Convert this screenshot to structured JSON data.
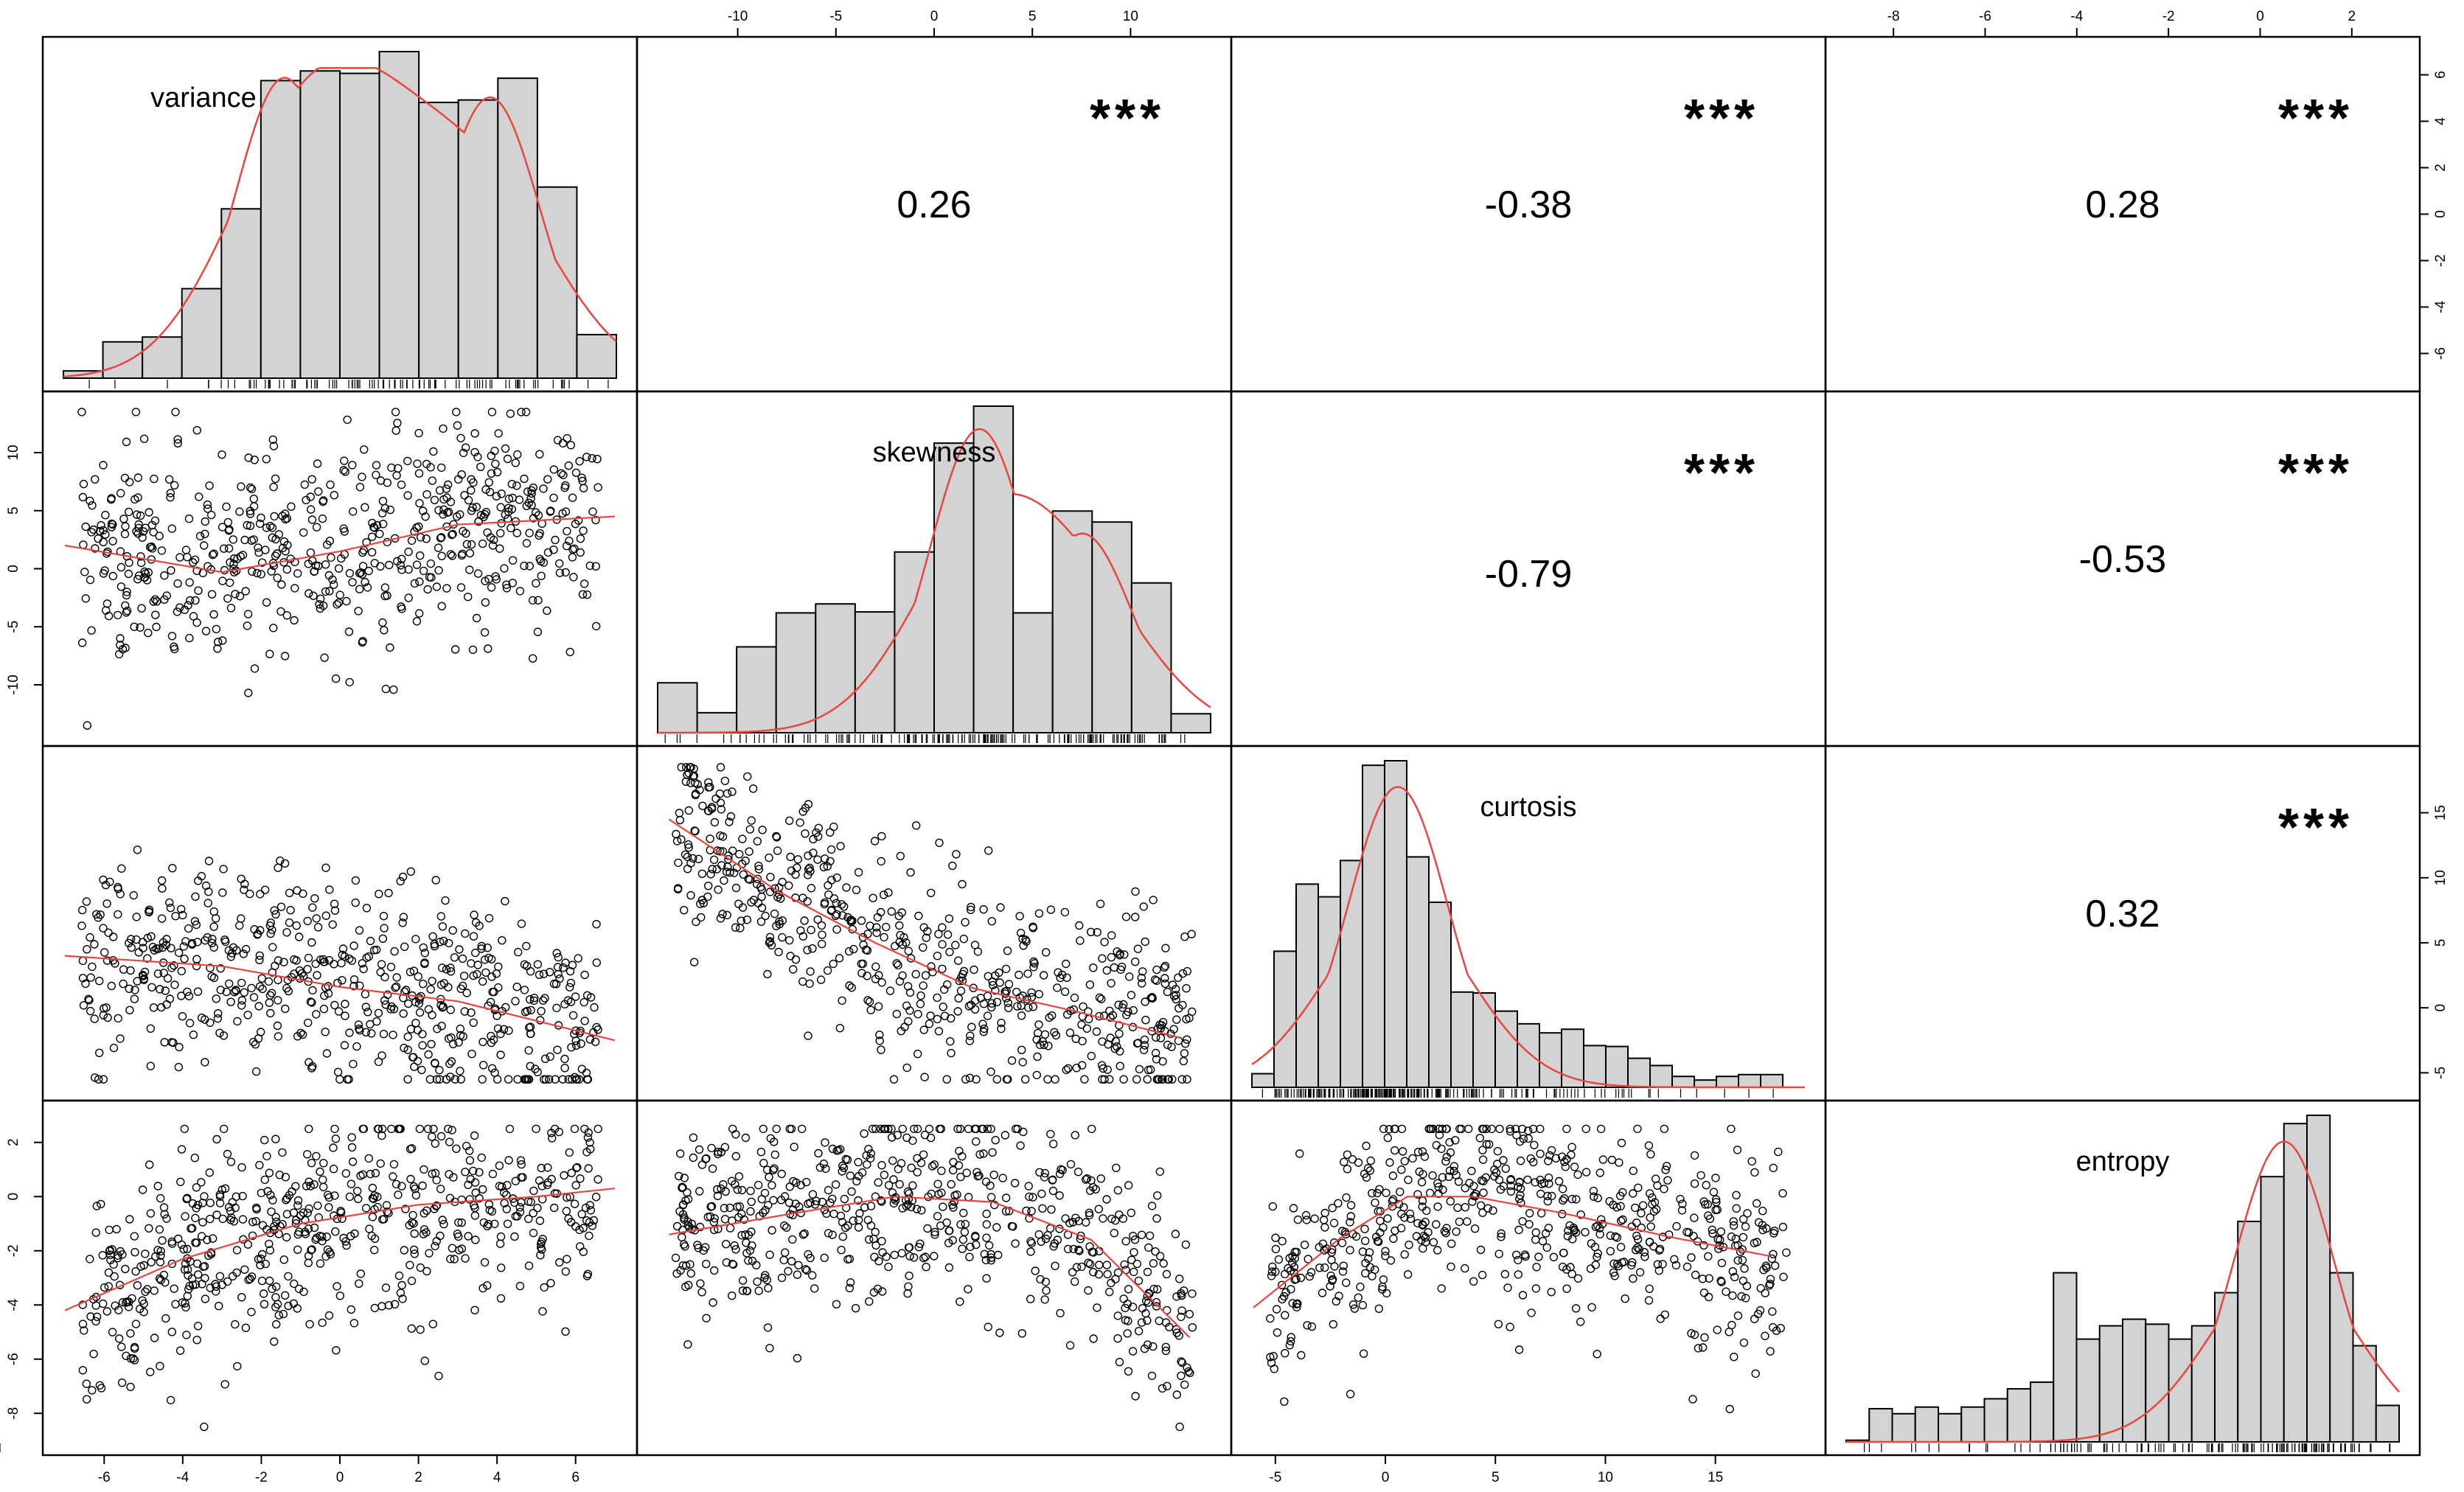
{
  "colors": {
    "background": "#ffffff",
    "bar": "#d3d3d3",
    "density": "#e8463f",
    "smooth": "#e8463f",
    "stars": "#d6496b",
    "ink": "#000000"
  },
  "chart_data": {
    "type": "scatter",
    "kind": "correlation-matrix",
    "title": "",
    "variables": [
      "variance",
      "skewness",
      "curtosis",
      "entropy"
    ],
    "ranges": {
      "variance": [
        -7.0,
        7.0
      ],
      "skewness": [
        -14.0,
        14.0
      ],
      "curtosis": [
        -6.0,
        19.0
      ],
      "entropy": [
        -9.0,
        3.0
      ]
    },
    "ticks": {
      "variance": [
        "-6",
        "-4",
        "-2",
        "0",
        "2",
        "4",
        "6"
      ],
      "skewness": [
        "-10",
        "-5",
        "0",
        "5",
        "10"
      ],
      "curtosis": [
        "-5",
        "0",
        "5",
        "10",
        "15"
      ],
      "entropy": [
        "-8",
        "-6",
        "-4",
        "-2",
        "0",
        "2"
      ]
    },
    "correlations": [
      {
        "row": "variance",
        "col": "skewness",
        "value": "0.26",
        "stars": "***"
      },
      {
        "row": "variance",
        "col": "curtosis",
        "value": "-0.38",
        "stars": "***"
      },
      {
        "row": "variance",
        "col": "entropy",
        "value": "0.28",
        "stars": "***"
      },
      {
        "row": "skewness",
        "col": "curtosis",
        "value": "-0.79",
        "stars": "***"
      },
      {
        "row": "skewness",
        "col": "entropy",
        "value": "-0.53",
        "stars": "***"
      },
      {
        "row": "curtosis",
        "col": "entropy",
        "value": "0.32",
        "stars": "***"
      }
    ],
    "histograms": {
      "variance": {
        "breaks": [
          -7,
          -6,
          -5,
          -4,
          -3,
          -2,
          -1,
          0,
          1,
          2,
          3,
          4,
          5,
          6,
          7
        ],
        "counts": [
          3,
          15,
          17,
          37,
          70,
          123,
          127,
          126,
          135,
          114,
          115,
          124,
          79,
          18
        ]
      },
      "skewness": {
        "breaks": [
          -14,
          -12,
          -10,
          -8,
          -6,
          -4,
          -2,
          0,
          2,
          4,
          6,
          8,
          10,
          12,
          14
        ],
        "counts": [
          50,
          20,
          86,
          120,
          129,
          121,
          181,
          290,
          327,
          120,
          222,
          211,
          150,
          19
        ]
      },
      "curtosis": {
        "breaks": [
          -6,
          -5,
          -4,
          -3,
          -2,
          -1,
          0,
          1,
          2,
          3,
          4,
          5,
          6,
          7,
          8,
          9,
          10,
          11,
          12,
          13,
          14,
          15,
          16,
          17,
          18
        ],
        "counts": [
          15,
          150,
          224,
          210,
          250,
          355,
          360,
          254,
          204,
          105,
          104,
          84,
          70,
          60,
          64,
          46,
          45,
          32,
          24,
          12,
          8,
          12,
          14,
          14
        ]
      },
      "entropy": {
        "breaks": [
          -9,
          -8.5,
          -8,
          -7.5,
          -7,
          -6.5,
          -6,
          -5.5,
          -5,
          -4.5,
          -4,
          -3.5,
          -3,
          -2.5,
          -2,
          -1.5,
          -1,
          -0.5,
          0,
          0.5,
          1,
          1.5,
          2,
          2.5,
          3
        ],
        "counts": [
          1,
          20,
          17,
          21,
          17,
          21,
          26,
          32,
          36,
          102,
          62,
          70,
          74,
          71,
          62,
          70,
          90,
          133,
          160,
          192,
          197,
          102,
          58,
          22,
          10
        ]
      }
    },
    "density_peaks": {
      "variance": [
        [
          -1.4,
          0.92
        ],
        [
          0.8,
          0.93
        ],
        [
          3.8,
          0.86
        ]
      ],
      "skewness": [
        [
          2.3,
          0.93
        ],
        [
          7.5,
          0.61
        ]
      ],
      "curtosis": [
        [
          0.6,
          0.92
        ]
      ],
      "entropy": [
        [
          0.5,
          0.92
        ]
      ]
    },
    "scatter_regions": [
      {
        "pair": [
          "variance",
          "skewness"
        ],
        "n": 620,
        "smooth": [
          [
            -7,
            2
          ],
          [
            -3,
            -0.3
          ],
          [
            0,
            1.5
          ],
          [
            3,
            3.8
          ],
          [
            7,
            4.5
          ]
        ]
      },
      {
        "pair": [
          "variance",
          "curtosis"
        ],
        "n": 620,
        "smooth": [
          [
            -7,
            4
          ],
          [
            -3,
            3.2
          ],
          [
            0,
            1.6
          ],
          [
            3,
            0.5
          ],
          [
            7,
            -2.5
          ]
        ]
      },
      {
        "pair": [
          "skewness",
          "curtosis"
        ],
        "n": 620,
        "smooth": [
          [
            -13.5,
            14.5
          ],
          [
            -8,
            9
          ],
          [
            -3,
            5
          ],
          [
            2,
            1.5
          ],
          [
            7,
            -0.2
          ],
          [
            12.5,
            -2.3
          ]
        ]
      },
      {
        "pair": [
          "variance",
          "entropy"
        ],
        "n": 620,
        "smooth": [
          [
            -7,
            -4.2
          ],
          [
            -4,
            -2.3
          ],
          [
            -1,
            -1.0
          ],
          [
            2,
            -0.3
          ],
          [
            5,
            0
          ],
          [
            7,
            0.3
          ]
        ]
      },
      {
        "pair": [
          "skewness",
          "entropy"
        ],
        "n": 620,
        "smooth": [
          [
            -13.5,
            -1.4
          ],
          [
            -7,
            -0.6
          ],
          [
            -2,
            0
          ],
          [
            3,
            -0.2
          ],
          [
            8,
            -1.6
          ],
          [
            13,
            -5.2
          ]
        ]
      },
      {
        "pair": [
          "curtosis",
          "entropy"
        ],
        "n": 620,
        "smooth": [
          [
            -6,
            -4.1
          ],
          [
            -2,
            -1.5
          ],
          [
            1,
            0
          ],
          [
            4,
            0
          ],
          [
            8,
            -0.6
          ],
          [
            13,
            -1.5
          ],
          [
            17.5,
            -2.2
          ]
        ]
      }
    ]
  }
}
